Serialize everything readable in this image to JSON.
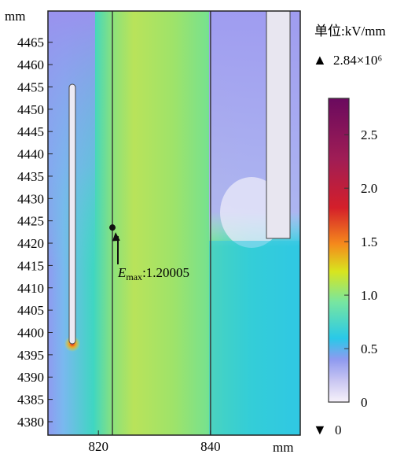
{
  "chart_data": {
    "type": "heatmap",
    "title": "",
    "unit_label": "单位:kV/mm",
    "x_axis": {
      "unit": "mm",
      "ticks": [
        820,
        840
      ],
      "range": [
        811,
        856
      ]
    },
    "y_axis": {
      "unit": "mm",
      "ticks": [
        4465,
        4460,
        4455,
        4450,
        4445,
        4440,
        4435,
        4430,
        4425,
        4420,
        4415,
        4410,
        4405,
        4400,
        4395,
        4390,
        4385,
        4380
      ],
      "range": [
        4377,
        4472
      ]
    },
    "colorbar": {
      "ticks": [
        "2.5",
        "2.0",
        "1.5",
        "1.0",
        "0.5",
        "0"
      ],
      "tick_values": [
        2.5,
        2.0,
        1.5,
        1.0,
        0.5,
        0
      ],
      "range": [
        0,
        2.84
      ],
      "colors": [
        "#f7f2fa",
        "#8f9af0",
        "#29c9e8",
        "#78e6a0",
        "#d8e51e",
        "#f58a1c",
        "#d41f2a",
        "#a01d55",
        "#6a0a5e"
      ]
    },
    "max_marker": {
      "symbol": "▲",
      "label": "2.84×10⁶"
    },
    "min_marker": {
      "symbol": "▼",
      "label": "0"
    },
    "annotation": {
      "symbol": "E",
      "subscript": "max",
      "value_text": ":1.20005",
      "x": 822.5,
      "y": 4423.5
    },
    "boundaries_x": [
      822.5,
      840
    ],
    "colors": {
      "background_field": "#b6e060",
      "electrode": "#e8e6f0",
      "line": "#333333"
    }
  }
}
